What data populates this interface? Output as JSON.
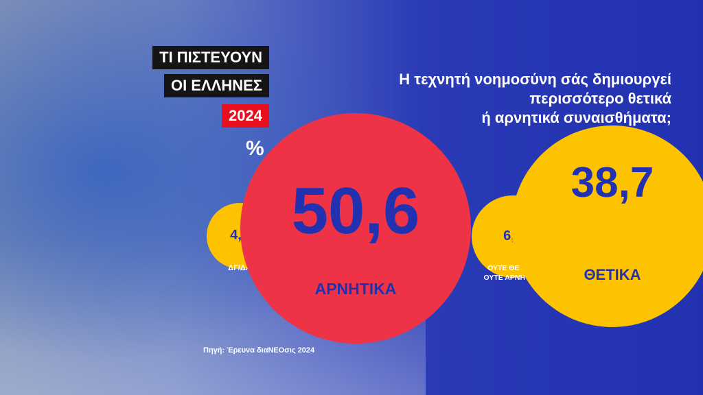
{
  "header": {
    "tag_line1": "ΤΙ ΠΙΣΤΕΥΟΥΝ",
    "tag_line2": "ΟΙ ΕΛΛΗΝΕΣ",
    "year": "2024",
    "unit": "%"
  },
  "question": [
    "Η τεχνητή νοημοσύνη σάς δημιουργεί",
    "περισσότερο θετικά",
    "ή αρνητικά συναισθήματα;"
  ],
  "source": "Πηγή: Έρευνα διαΝΕΟσις 2024",
  "colors": {
    "background": "#2231b0",
    "negative": "#ee3347",
    "other": "#fdc300",
    "text_on_bubble": "#2231b0"
  },
  "chart_data": {
    "type": "bubble",
    "unit": "%",
    "categories": [
      "ΔΓ/ΔΑ",
      "ΑΡΝΗΤΙΚΑ",
      "ΟΥΤΕ ΘΕΤΙΚΑ, ΟΥΤΕ ΑΡΝΗΤΙΚΑ",
      "ΘΕΤΙΚΑ"
    ],
    "labels": [
      "4,2",
      "50,6",
      "6,5",
      "38,7"
    ],
    "values": [
      4.2,
      50.6,
      6.5,
      38.7
    ],
    "category_lines": {
      "neither_1": "ΟΥΤΕ ΘΕΤΙΚΑ,",
      "neither_2": "ΟΥΤΕ ΑΡΝΗΤΙΚΑ"
    }
  }
}
